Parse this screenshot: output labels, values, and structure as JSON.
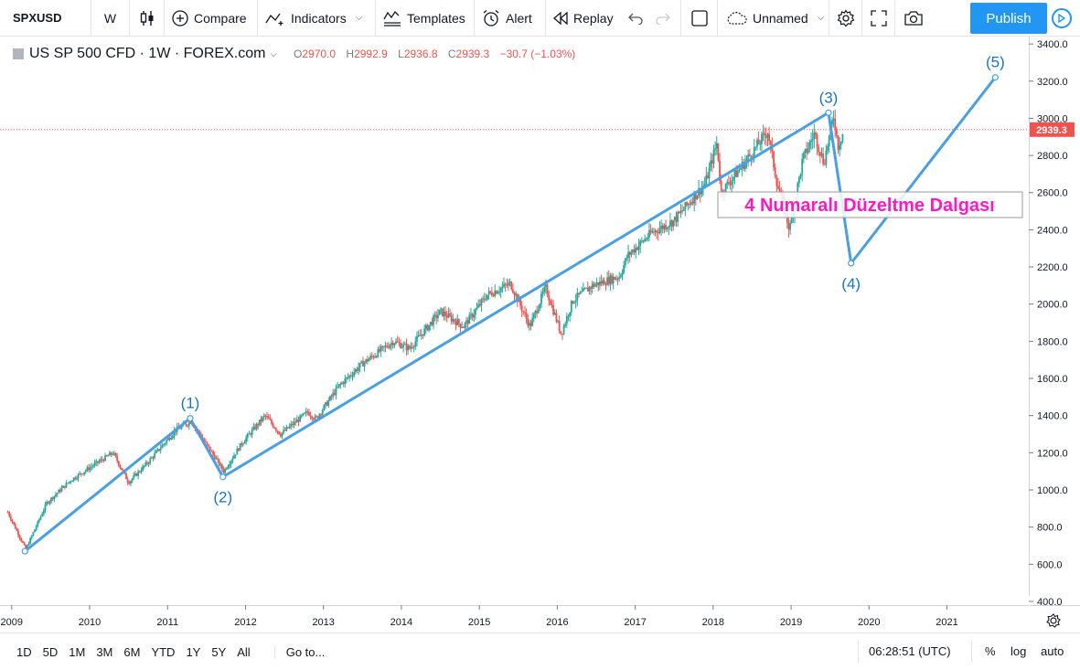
{
  "toolbar": {
    "symbol": "SPXUSD",
    "interval": "W",
    "compare": "Compare",
    "indicators": "Indicators",
    "templates": "Templates",
    "alert": "Alert",
    "replay": "Replay",
    "layout_name": "Unnamed",
    "publish": "Publish"
  },
  "legend": {
    "title": "US SP 500 CFD · 1W · FOREX.com",
    "open_key": "O",
    "open": "2970.0",
    "high_key": "H",
    "high": "2992.9",
    "low_key": "L",
    "low": "2936.8",
    "close_key": "C",
    "close": "2939.3",
    "change": "−30.7 (−1.03%)"
  },
  "colors": {
    "up": "#26a69a",
    "down": "#ef5350",
    "wave": "#4a9fe3",
    "annotation_text": "#ff1ac6",
    "publish": "#2196f3"
  },
  "chart_data": {
    "type": "candlestick",
    "price_scale": [
      "3400.0",
      "3200.0",
      "3000.0",
      "2800.0",
      "2600.0",
      "2400.0",
      "2200.0",
      "2000.0",
      "1800.0",
      "1600.0",
      "1400.0",
      "1200.0",
      "1000.0",
      "800.0",
      "600.0",
      "400.0"
    ],
    "time_scale": [
      "2009",
      "2010",
      "2011",
      "2012",
      "2013",
      "2014",
      "2015",
      "2016",
      "2017",
      "2018",
      "2019",
      "2020",
      "2021"
    ],
    "last_price": "2939.3",
    "ylim": [
      380,
      3440
    ],
    "xlim": [
      2008.85,
      2022.05
    ],
    "weekly_closes": [
      [
        2008.95,
        880
      ],
      [
        2009.18,
        680
      ],
      [
        2009.45,
        930
      ],
      [
        2009.75,
        1050
      ],
      [
        2010.0,
        1120
      ],
      [
        2010.3,
        1200
      ],
      [
        2010.5,
        1040
      ],
      [
        2010.75,
        1150
      ],
      [
        2011.1,
        1320
      ],
      [
        2011.3,
        1370
      ],
      [
        2011.6,
        1180
      ],
      [
        2011.72,
        1100
      ],
      [
        2011.95,
        1250
      ],
      [
        2012.25,
        1400
      ],
      [
        2012.45,
        1300
      ],
      [
        2012.8,
        1420
      ],
      [
        2012.9,
        1380
      ],
      [
        2013.2,
        1560
      ],
      [
        2013.5,
        1680
      ],
      [
        2013.9,
        1800
      ],
      [
        2014.1,
        1760
      ],
      [
        2014.5,
        1960
      ],
      [
        2014.8,
        1880
      ],
      [
        2015.1,
        2050
      ],
      [
        2015.4,
        2110
      ],
      [
        2015.65,
        1880
      ],
      [
        2015.85,
        2090
      ],
      [
        2016.05,
        1840
      ],
      [
        2016.2,
        2020
      ],
      [
        2016.45,
        2100
      ],
      [
        2016.8,
        2150
      ],
      [
        2016.9,
        2260
      ],
      [
        2017.2,
        2380
      ],
      [
        2017.5,
        2450
      ],
      [
        2017.9,
        2650
      ],
      [
        2018.05,
        2870
      ],
      [
        2018.1,
        2600
      ],
      [
        2018.4,
        2760
      ],
      [
        2018.7,
        2930
      ],
      [
        2018.82,
        2650
      ],
      [
        2018.98,
        2400
      ],
      [
        2019.15,
        2780
      ],
      [
        2019.3,
        2920
      ],
      [
        2019.42,
        2760
      ],
      [
        2019.55,
        3020
      ],
      [
        2019.6,
        2850
      ],
      [
        2019.68,
        2939.3
      ]
    ],
    "wave_points": [
      {
        "label": "",
        "x": 2009.17,
        "y": 670
      },
      {
        "label": "(1)",
        "x": 2011.29,
        "y": 1385
      },
      {
        "label": "(2)",
        "x": 2011.71,
        "y": 1070
      },
      {
        "label": "(3)",
        "x": 2019.48,
        "y": 3030
      },
      {
        "label": "(4)",
        "x": 2019.77,
        "y": 2220
      },
      {
        "label": "(5)",
        "x": 2021.62,
        "y": 3220
      }
    ],
    "annotation": "4 Numaralı Düzeltme Dalgası"
  },
  "bottombar": {
    "ranges": [
      "1D",
      "5D",
      "1M",
      "3M",
      "6M",
      "YTD",
      "1Y",
      "5Y",
      "All"
    ],
    "goto": "Go to...",
    "time": "06:28:51 (UTC)",
    "percent": "%",
    "log": "log",
    "auto": "auto"
  }
}
